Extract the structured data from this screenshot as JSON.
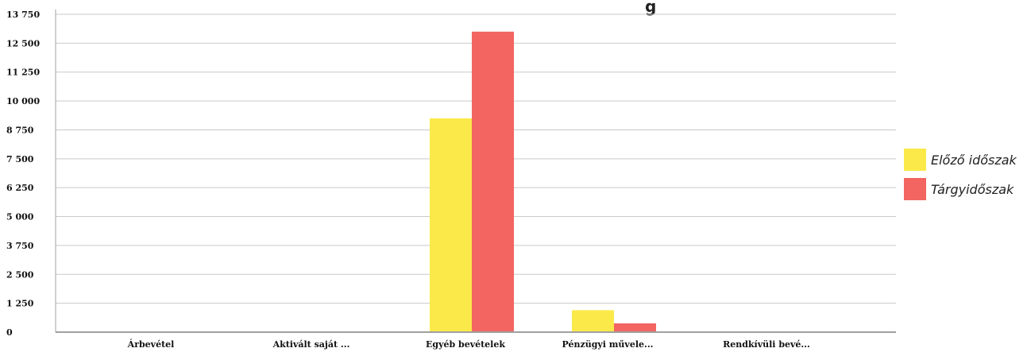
{
  "chart_data": {
    "type": "bar",
    "categories": [
      "Árbevétel",
      "Aktivált saját ...",
      "Egyéb bevételek",
      "Pénzügyi művele...",
      "Rendkívüli bevé..."
    ],
    "series": [
      {
        "name": "Előző időszak",
        "color": "#fbe94a",
        "values": [
          0,
          0,
          9250,
          950,
          0
        ]
      },
      {
        "name": "Tárgyidőszak",
        "color": "#f26560",
        "values": [
          0,
          0,
          13000,
          380,
          0
        ]
      }
    ],
    "y_ticks": [
      "0",
      "1 250",
      "2 500",
      "3 750",
      "5 000",
      "6 250",
      "7 500",
      "8 750",
      "10 000",
      "11 250",
      "12 500",
      "13 750"
    ],
    "ylim": [
      0,
      13750
    ],
    "grid": true,
    "legend_position": "right",
    "title_fragment": "g",
    "gridline_color": "#c9c9c9",
    "axis_color": "#a0a0a0"
  }
}
